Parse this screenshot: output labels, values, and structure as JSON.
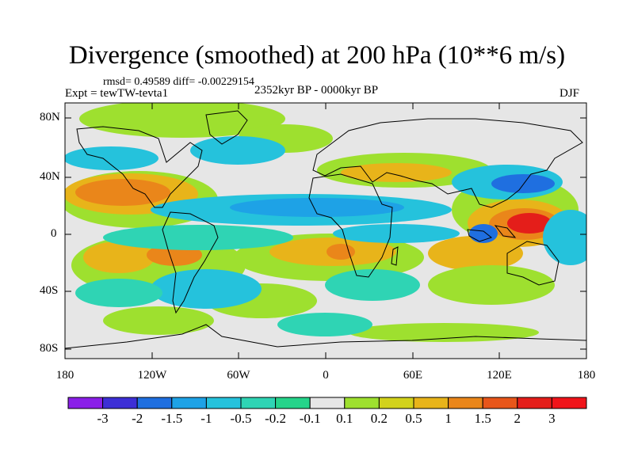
{
  "title": "Divergence (smoothed) at 200 hPa (10**6 m/s)",
  "stats": "rmsd= 0.49589 diff= -0.00229154",
  "experiment": "Expt = tewTW-tevta1",
  "period": "2352kyr BP - 0000kyr BP",
  "season": "DJF",
  "lat_labels": [
    "80N",
    "40N",
    "0",
    "40S",
    "80S"
  ],
  "lon_labels": [
    "180",
    "120W",
    "60W",
    "0",
    "60E",
    "120E",
    "180"
  ],
  "colorbar": {
    "labels": [
      "-3",
      "-2",
      "-1.5",
      "-1",
      "-0.5",
      "-0.2",
      "-0.1",
      "0.1",
      "0.2",
      "0.5",
      "1",
      "1.5",
      "2",
      "3"
    ],
    "colors": [
      "#8a1fe8",
      "#3d2fd6",
      "#1f6fe0",
      "#1ea2e6",
      "#25c2dc",
      "#2fd4b4",
      "#25d48a",
      "#e6e6e6",
      "#9ee02f",
      "#d2d21c",
      "#e8b41a",
      "#ea861a",
      "#e8561a",
      "#e41e1a",
      "#f0141a"
    ]
  }
}
